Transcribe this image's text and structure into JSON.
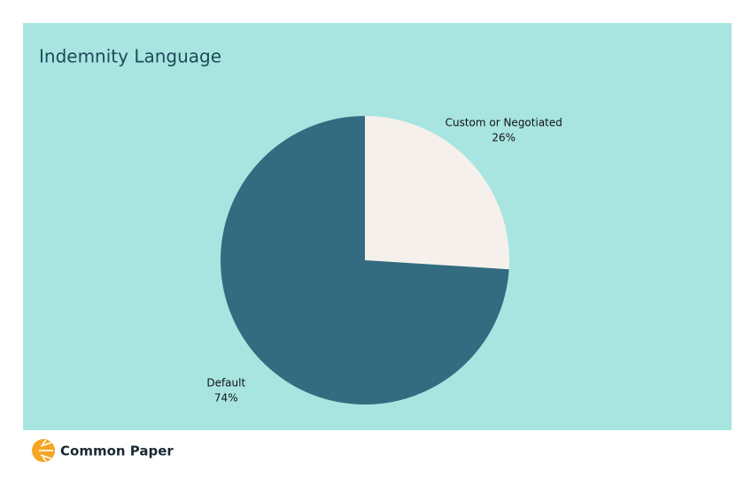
{
  "chart_data": {
    "type": "pie",
    "title": "Indemnity Language",
    "categories": [
      "Custom or Negotiated",
      "Default"
    ],
    "values": [
      26,
      74
    ],
    "value_labels": [
      "26%",
      "74%"
    ],
    "colors": [
      "#f5f0eb",
      "#336b80"
    ]
  },
  "footer": {
    "brand": "Common Paper"
  }
}
